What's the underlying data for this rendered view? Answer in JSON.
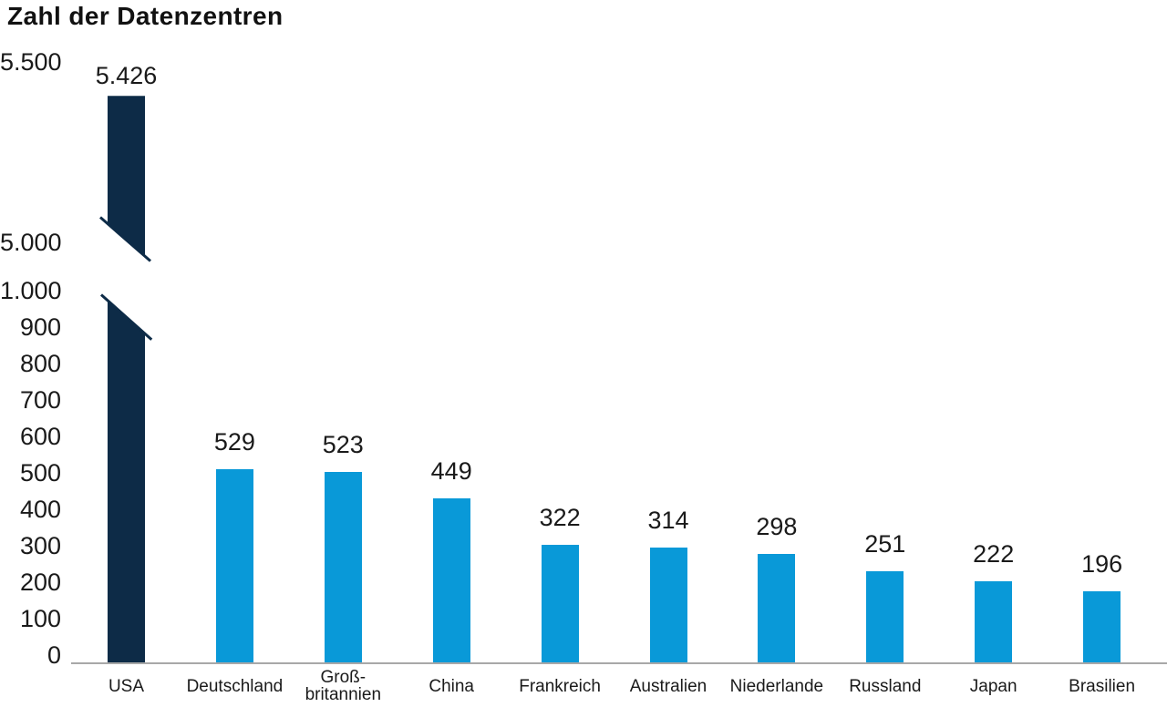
{
  "chart_data": {
    "type": "bar",
    "title": "Zahl der Datenzentren",
    "categories": [
      "USA",
      "Deutschland",
      "Groß-\nbritannien",
      "China",
      "Frankreich",
      "Australien",
      "Niederlande",
      "Russland",
      "Japan",
      "Brasilien"
    ],
    "values": [
      5426,
      529,
      523,
      449,
      322,
      314,
      298,
      251,
      222,
      196
    ],
    "value_labels": [
      "5.426",
      "529",
      "523",
      "449",
      "322",
      "314",
      "298",
      "251",
      "222",
      "196"
    ],
    "highlight_index": 0,
    "xlabel": "",
    "ylabel": "",
    "legend": null,
    "grid": false,
    "y_axis": {
      "broken": true,
      "bottom_section": {
        "range": [
          0,
          1000
        ],
        "ticks": [
          {
            "value": 0,
            "label": "0"
          },
          {
            "value": 100,
            "label": "100"
          },
          {
            "value": 200,
            "label": "200"
          },
          {
            "value": 300,
            "label": "300"
          },
          {
            "value": 400,
            "label": "400"
          },
          {
            "value": 500,
            "label": "500"
          },
          {
            "value": 600,
            "label": "600"
          },
          {
            "value": 700,
            "label": "700"
          },
          {
            "value": 800,
            "label": "800"
          },
          {
            "value": 900,
            "label": "900"
          },
          {
            "value": 1000,
            "label": "1.000"
          }
        ]
      },
      "top_section": {
        "range": [
          5000,
          5500
        ],
        "ticks": [
          {
            "value": 5000,
            "label": "5.000"
          },
          {
            "value": 5500,
            "label": "5.500"
          }
        ]
      }
    },
    "colors": {
      "bar_blue": "#0999d8",
      "bar_navy": "#0d2b47",
      "axis_line": "#a8a8a8",
      "text": "#1a1a1a"
    }
  }
}
